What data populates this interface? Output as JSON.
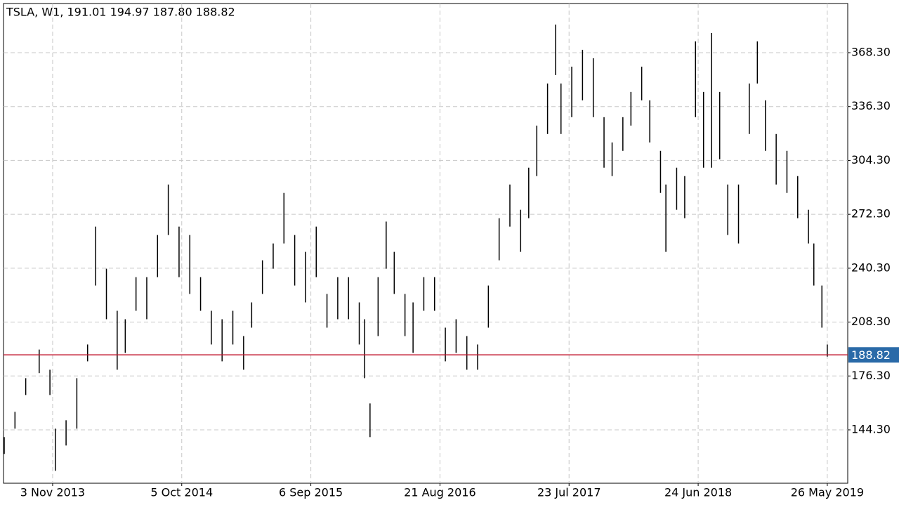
{
  "chart_data": {
    "type": "ohlc",
    "title": "TSLA, W1, 191.01 194.97 187.80 188.82",
    "color": "#000000",
    "x": [
      0,
      4,
      8,
      13,
      17,
      19,
      23,
      27,
      31,
      34,
      38,
      42,
      45,
      49,
      53,
      57,
      61,
      65,
      69,
      73,
      77,
      81,
      85,
      89,
      92,
      96,
      100,
      104,
      108,
      112,
      116,
      120,
      124,
      128,
      132,
      134,
      136,
      139,
      142,
      145,
      149,
      152,
      156,
      160,
      164,
      168,
      172,
      176,
      180,
      184,
      188,
      192,
      195,
      198,
      202,
      205,
      207,
      211,
      215,
      219,
      223,
      226,
      230,
      233,
      237,
      240,
      244,
      246,
      250,
      253,
      257,
      260,
      263,
      266,
      269,
      273,
      277,
      280,
      283,
      287,
      291,
      295,
      299,
      301,
      304,
      306
    ],
    "high": [
      140,
      155,
      175,
      192,
      180,
      145,
      150,
      175,
      195,
      265,
      240,
      215,
      210,
      235,
      235,
      260,
      290,
      265,
      260,
      235,
      215,
      210,
      215,
      200,
      220,
      245,
      255,
      285,
      260,
      250,
      265,
      225,
      235,
      235,
      220,
      210,
      160,
      235,
      268,
      250,
      225,
      220,
      235,
      235,
      205,
      210,
      200,
      195,
      230,
      270,
      290,
      275,
      300,
      325,
      350,
      385,
      350,
      360,
      370,
      365,
      330,
      315,
      330,
      345,
      360,
      340,
      310,
      290,
      300,
      295,
      375,
      345,
      380,
      345,
      290,
      290,
      350,
      375,
      340,
      320,
      310,
      295,
      275,
      255,
      230,
      194.97
    ],
    "low": [
      130,
      145,
      165,
      178,
      165,
      120,
      135,
      145,
      185,
      230,
      210,
      180,
      190,
      215,
      210,
      235,
      260,
      235,
      225,
      215,
      195,
      185,
      195,
      180,
      205,
      225,
      240,
      255,
      230,
      220,
      235,
      205,
      210,
      210,
      195,
      175,
      140,
      200,
      240,
      225,
      200,
      190,
      215,
      215,
      185,
      190,
      180,
      180,
      205,
      245,
      265,
      250,
      270,
      295,
      320,
      355,
      320,
      330,
      340,
      330,
      300,
      295,
      310,
      325,
      340,
      315,
      285,
      250,
      275,
      270,
      330,
      300,
      300,
      305,
      260,
      255,
      320,
      350,
      310,
      290,
      285,
      270,
      255,
      230,
      205,
      187.8
    ],
    "xlim": [
      -0.26,
      313.6
    ],
    "ylim": [
      112.6,
      397.5
    ],
    "xticks": [
      {
        "value": 18,
        "label": "3 Nov 2013"
      },
      {
        "value": 66,
        "label": "5 Oct 2014"
      },
      {
        "value": 114,
        "label": "6 Sep 2015"
      },
      {
        "value": 162,
        "label": "21 Aug 2016"
      },
      {
        "value": 210,
        "label": "23 Jul 2017"
      },
      {
        "value": 258,
        "label": "24 Jun 2018"
      },
      {
        "value": 306,
        "label": "26 May 2019"
      }
    ],
    "yticks": [
      {
        "value": 144.3,
        "label": "144.30"
      },
      {
        "value": 176.3,
        "label": "176.30"
      },
      {
        "value": 208.3,
        "label": "208.30"
      },
      {
        "value": 240.3,
        "label": "240.30"
      },
      {
        "value": 272.3,
        "label": "272.30"
      },
      {
        "value": 304.3,
        "label": "304.30"
      },
      {
        "value": 336.3,
        "label": "336.30"
      },
      {
        "value": 368.3,
        "label": "368.30"
      }
    ],
    "grid": true,
    "price_line": {
      "value": 188.82,
      "color": "#c0142c",
      "label_color": "#2a6aa8"
    }
  }
}
